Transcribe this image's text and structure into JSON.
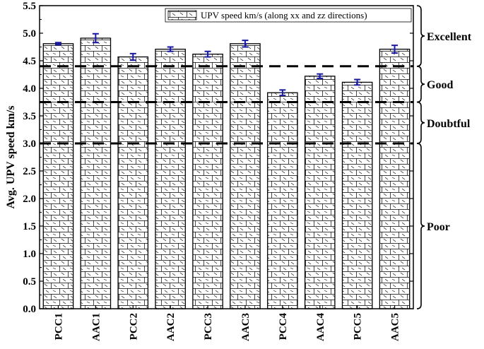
{
  "chart_data": {
    "type": "bar",
    "categories": [
      "PCC1",
      "AAC1",
      "PCC2",
      "AAC2",
      "PCC3",
      "AAC3",
      "PCC4",
      "AAC4",
      "PCC5",
      "AAC5"
    ],
    "series": [
      {
        "name": "UPV speed km/s (along xx and zz directions)",
        "values": [
          4.81,
          4.91,
          4.57,
          4.71,
          4.62,
          4.81,
          3.92,
          4.22,
          4.11,
          4.71
        ],
        "errors": [
          0.02,
          0.08,
          0.06,
          0.04,
          0.05,
          0.06,
          0.05,
          0.04,
          0.05,
          0.07
        ]
      }
    ],
    "xlabel": "",
    "ylabel": "Avg. UPV speed km/s",
    "ylim": [
      0,
      5.5
    ],
    "yticks": [
      "0.0",
      "0.5",
      "1.0",
      "1.5",
      "2.0",
      "2.5",
      "3.0",
      "3.5",
      "4.0",
      "4.5",
      "5.0",
      "5.5"
    ],
    "thresholds": [
      3.0,
      3.75,
      4.4
    ],
    "zones": [
      {
        "label": "Excellent",
        "from": 4.4,
        "to": 5.5
      },
      {
        "label": "Good",
        "from": 3.75,
        "to": 4.4
      },
      {
        "label": "Doubtful",
        "from": 3.0,
        "to": 3.75
      },
      {
        "label": "Poor",
        "from": 0.0,
        "to": 3.0
      }
    ],
    "legend_position": "top-right",
    "grid": false,
    "colors": {
      "bar_fill": "#ffffff",
      "bar_pattern": "#000000",
      "error_bar": "#1a1aa0",
      "threshold_line": "#000000"
    }
  }
}
